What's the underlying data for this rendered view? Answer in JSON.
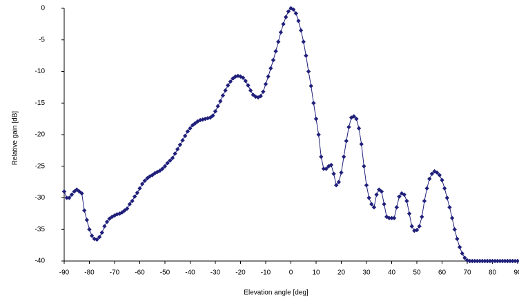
{
  "chart_data": {
    "type": "line",
    "x_label": "Elevation angle [deg]",
    "y_label": "Relative gain [dB]",
    "color": "#1f1f7a",
    "marker": "diamond",
    "grid": false,
    "xlim": [
      -90,
      90
    ],
    "ylim": [
      -40,
      0
    ],
    "xticks": [
      -90,
      -80,
      -70,
      -60,
      -50,
      -40,
      -30,
      -20,
      -10,
      0,
      10,
      20,
      30,
      40,
      50,
      60,
      70,
      80,
      90
    ],
    "yticks": [
      0,
      -5,
      -10,
      -15,
      -20,
      -25,
      -30,
      -35,
      -40
    ],
    "x": [
      -90,
      -89,
      -88,
      -87,
      -86,
      -85,
      -84,
      -83,
      -82,
      -81,
      -80,
      -79,
      -78,
      -77,
      -76,
      -75,
      -74,
      -73,
      -72,
      -71,
      -70,
      -69,
      -68,
      -67,
      -66,
      -65,
      -64,
      -63,
      -62,
      -61,
      -60,
      -59,
      -58,
      -57,
      -56,
      -55,
      -54,
      -53,
      -52,
      -51,
      -50,
      -49,
      -48,
      -47,
      -46,
      -45,
      -44,
      -43,
      -42,
      -41,
      -40,
      -39,
      -38,
      -37,
      -36,
      -35,
      -34,
      -33,
      -32,
      -31,
      -30,
      -29,
      -28,
      -27,
      -26,
      -25,
      -24,
      -23,
      -22,
      -21,
      -20,
      -19,
      -18,
      -17,
      -16,
      -15,
      -14,
      -13,
      -12,
      -11,
      -10,
      -9,
      -8,
      -7,
      -6,
      -5,
      -4,
      -3,
      -2,
      -1,
      0,
      1,
      2,
      3,
      4,
      5,
      6,
      7,
      8,
      9,
      10,
      11,
      12,
      13,
      14,
      15,
      16,
      17,
      18,
      19,
      20,
      21,
      22,
      23,
      24,
      25,
      26,
      27,
      28,
      29,
      30,
      31,
      32,
      33,
      34,
      35,
      36,
      37,
      38,
      39,
      40,
      41,
      42,
      43,
      44,
      45,
      46,
      47,
      48,
      49,
      50,
      51,
      52,
      53,
      54,
      55,
      56,
      57,
      58,
      59,
      60,
      61,
      62,
      63,
      64,
      65,
      66,
      67,
      68,
      69,
      70,
      71,
      72,
      73,
      74,
      75,
      76,
      77,
      78,
      79,
      80,
      81,
      82,
      83,
      84,
      85,
      86,
      87,
      88,
      89,
      90
    ],
    "values": [
      -29,
      -30,
      -30,
      -29.5,
      -29,
      -28.7,
      -29,
      -29.3,
      -32,
      -33.5,
      -35,
      -36,
      -36.5,
      -36.6,
      -36.2,
      -35.5,
      -34.5,
      -33.8,
      -33.3,
      -33,
      -32.8,
      -32.6,
      -32.5,
      -32.3,
      -32,
      -31.7,
      -31,
      -30.5,
      -29.8,
      -29.2,
      -28.5,
      -27.8,
      -27.3,
      -26.9,
      -26.6,
      -26.4,
      -26.1,
      -25.9,
      -25.7,
      -25.4,
      -25,
      -24.5,
      -24.1,
      -23.7,
      -23,
      -22.3,
      -21.6,
      -20.9,
      -20.2,
      -19.5,
      -19,
      -18.5,
      -18.2,
      -17.9,
      -17.7,
      -17.6,
      -17.5,
      -17.4,
      -17.3,
      -17,
      -16.3,
      -15.5,
      -14.7,
      -13.8,
      -13,
      -12.2,
      -11.6,
      -11.1,
      -10.8,
      -10.7,
      -10.8,
      -11,
      -11.5,
      -12.2,
      -13,
      -13.7,
      -14,
      -14.1,
      -13.9,
      -13.2,
      -12,
      -10.8,
      -9.5,
      -8.2,
      -6.8,
      -5.3,
      -3.8,
      -2.5,
      -1.4,
      -0.5,
      0,
      -0.2,
      -0.8,
      -2,
      -3.5,
      -5.3,
      -7.5,
      -10,
      -12.3,
      -15,
      -17.5,
      -20,
      -23.5,
      -25.4,
      -25.4,
      -25,
      -24.8,
      -26.2,
      -28,
      -27.5,
      -26,
      -23.5,
      -21,
      -18.8,
      -17.3,
      -17.1,
      -17.5,
      -19,
      -21.5,
      -25,
      -28,
      -30,
      -31,
      -31.5,
      -29.5,
      -28.7,
      -29,
      -31,
      -33,
      -33.2,
      -33.2,
      -33.2,
      -31.5,
      -29.8,
      -29.3,
      -29.5,
      -30.5,
      -32.5,
      -34.5,
      -35.2,
      -35.1,
      -34.5,
      -33,
      -30.5,
      -28.5,
      -27,
      -26.2,
      -25.8,
      -26,
      -26.4,
      -27.2,
      -28.5,
      -30,
      -31.5,
      -33.2,
      -35,
      -36.5,
      -37.8,
      -38.8,
      -39.5,
      -39.9,
      -40,
      -40,
      -40,
      -40,
      -40,
      -40,
      -40,
      -40,
      -40,
      -40,
      -40,
      -40,
      -40,
      -40,
      -40,
      -40,
      -40,
      -40,
      -40,
      -40
    ]
  }
}
